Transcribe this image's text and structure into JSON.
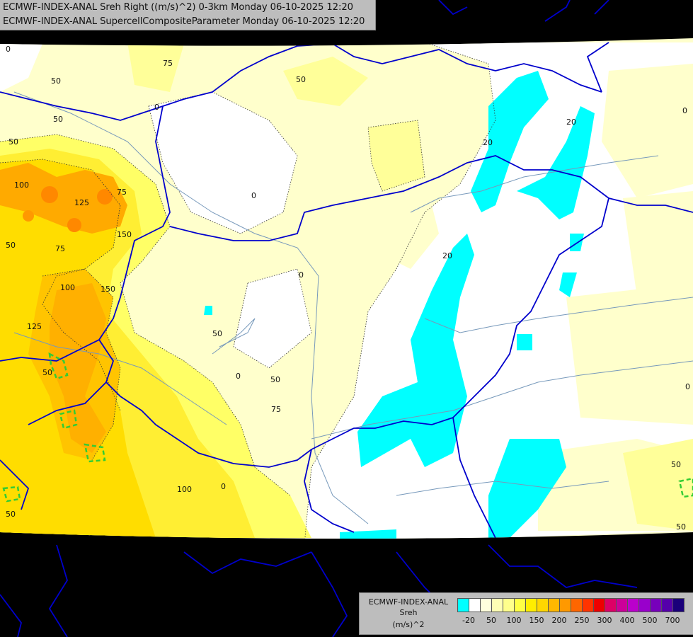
{
  "header": {
    "line1": "ECMWF-INDEX-ANAL Sreh Right ((m/s)^2) 0-3km Monday 06-10-2025 12:20",
    "line2": "ECMWF-INDEX-ANAL SupercellCompositeParameter Monday 06-10-2025 12:20"
  },
  "legend": {
    "name_line1": "ECMWF-INDEX-ANAL",
    "name_line2": "Sreh",
    "name_line3": "(m/s)^2",
    "tick_labels": [
      "-20",
      "50",
      "100",
      "150",
      "200",
      "250",
      "300",
      "400",
      "500",
      "700"
    ],
    "colors": [
      "#00ffff",
      "#ffffff",
      "#ffffdd",
      "#ffffb5",
      "#ffff8c",
      "#ffff46",
      "#ffee00",
      "#ffd700",
      "#ffb800",
      "#ff9900",
      "#ff6600",
      "#ff3300",
      "#ee0000",
      "#dd0066",
      "#cc0099",
      "#bb00cc",
      "#9900cc",
      "#7700bb",
      "#5500aa",
      "#1a007a"
    ]
  },
  "contour_labels": [
    "0",
    "20",
    "50",
    "75",
    "100",
    "125",
    "150"
  ],
  "colors": {
    "background": "#000000",
    "domain_fill": "#ffffcc",
    "border_line": "#0000cc",
    "river_line": "#7799bb"
  }
}
